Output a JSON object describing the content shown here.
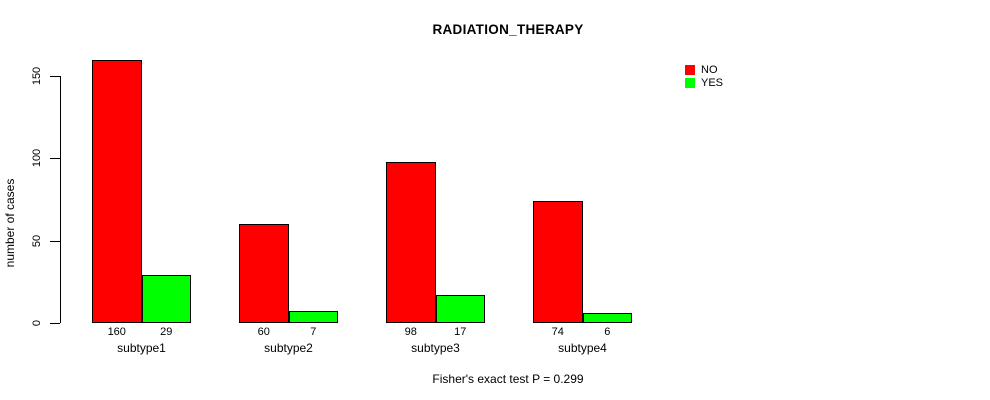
{
  "chart_data": {
    "type": "bar",
    "title": "RADIATION_THERAPY",
    "categories": [
      "subtype1",
      "subtype2",
      "subtype3",
      "subtype4"
    ],
    "series": [
      {
        "name": "NO",
        "color": "#ff0000",
        "values": [
          160,
          60,
          98,
          74
        ]
      },
      {
        "name": "YES",
        "color": "#00ff00",
        "values": [
          29,
          7,
          17,
          6
        ]
      }
    ],
    "xlabel": "",
    "ylabel": "number of cases",
    "ylim": [
      0,
      150
    ],
    "yticks": [
      0,
      50,
      100,
      150
    ],
    "grid": false,
    "legend_position": "top-right",
    "bar_value_labels_shown": true,
    "annotation": "Fisher's exact test P = 0.299"
  }
}
